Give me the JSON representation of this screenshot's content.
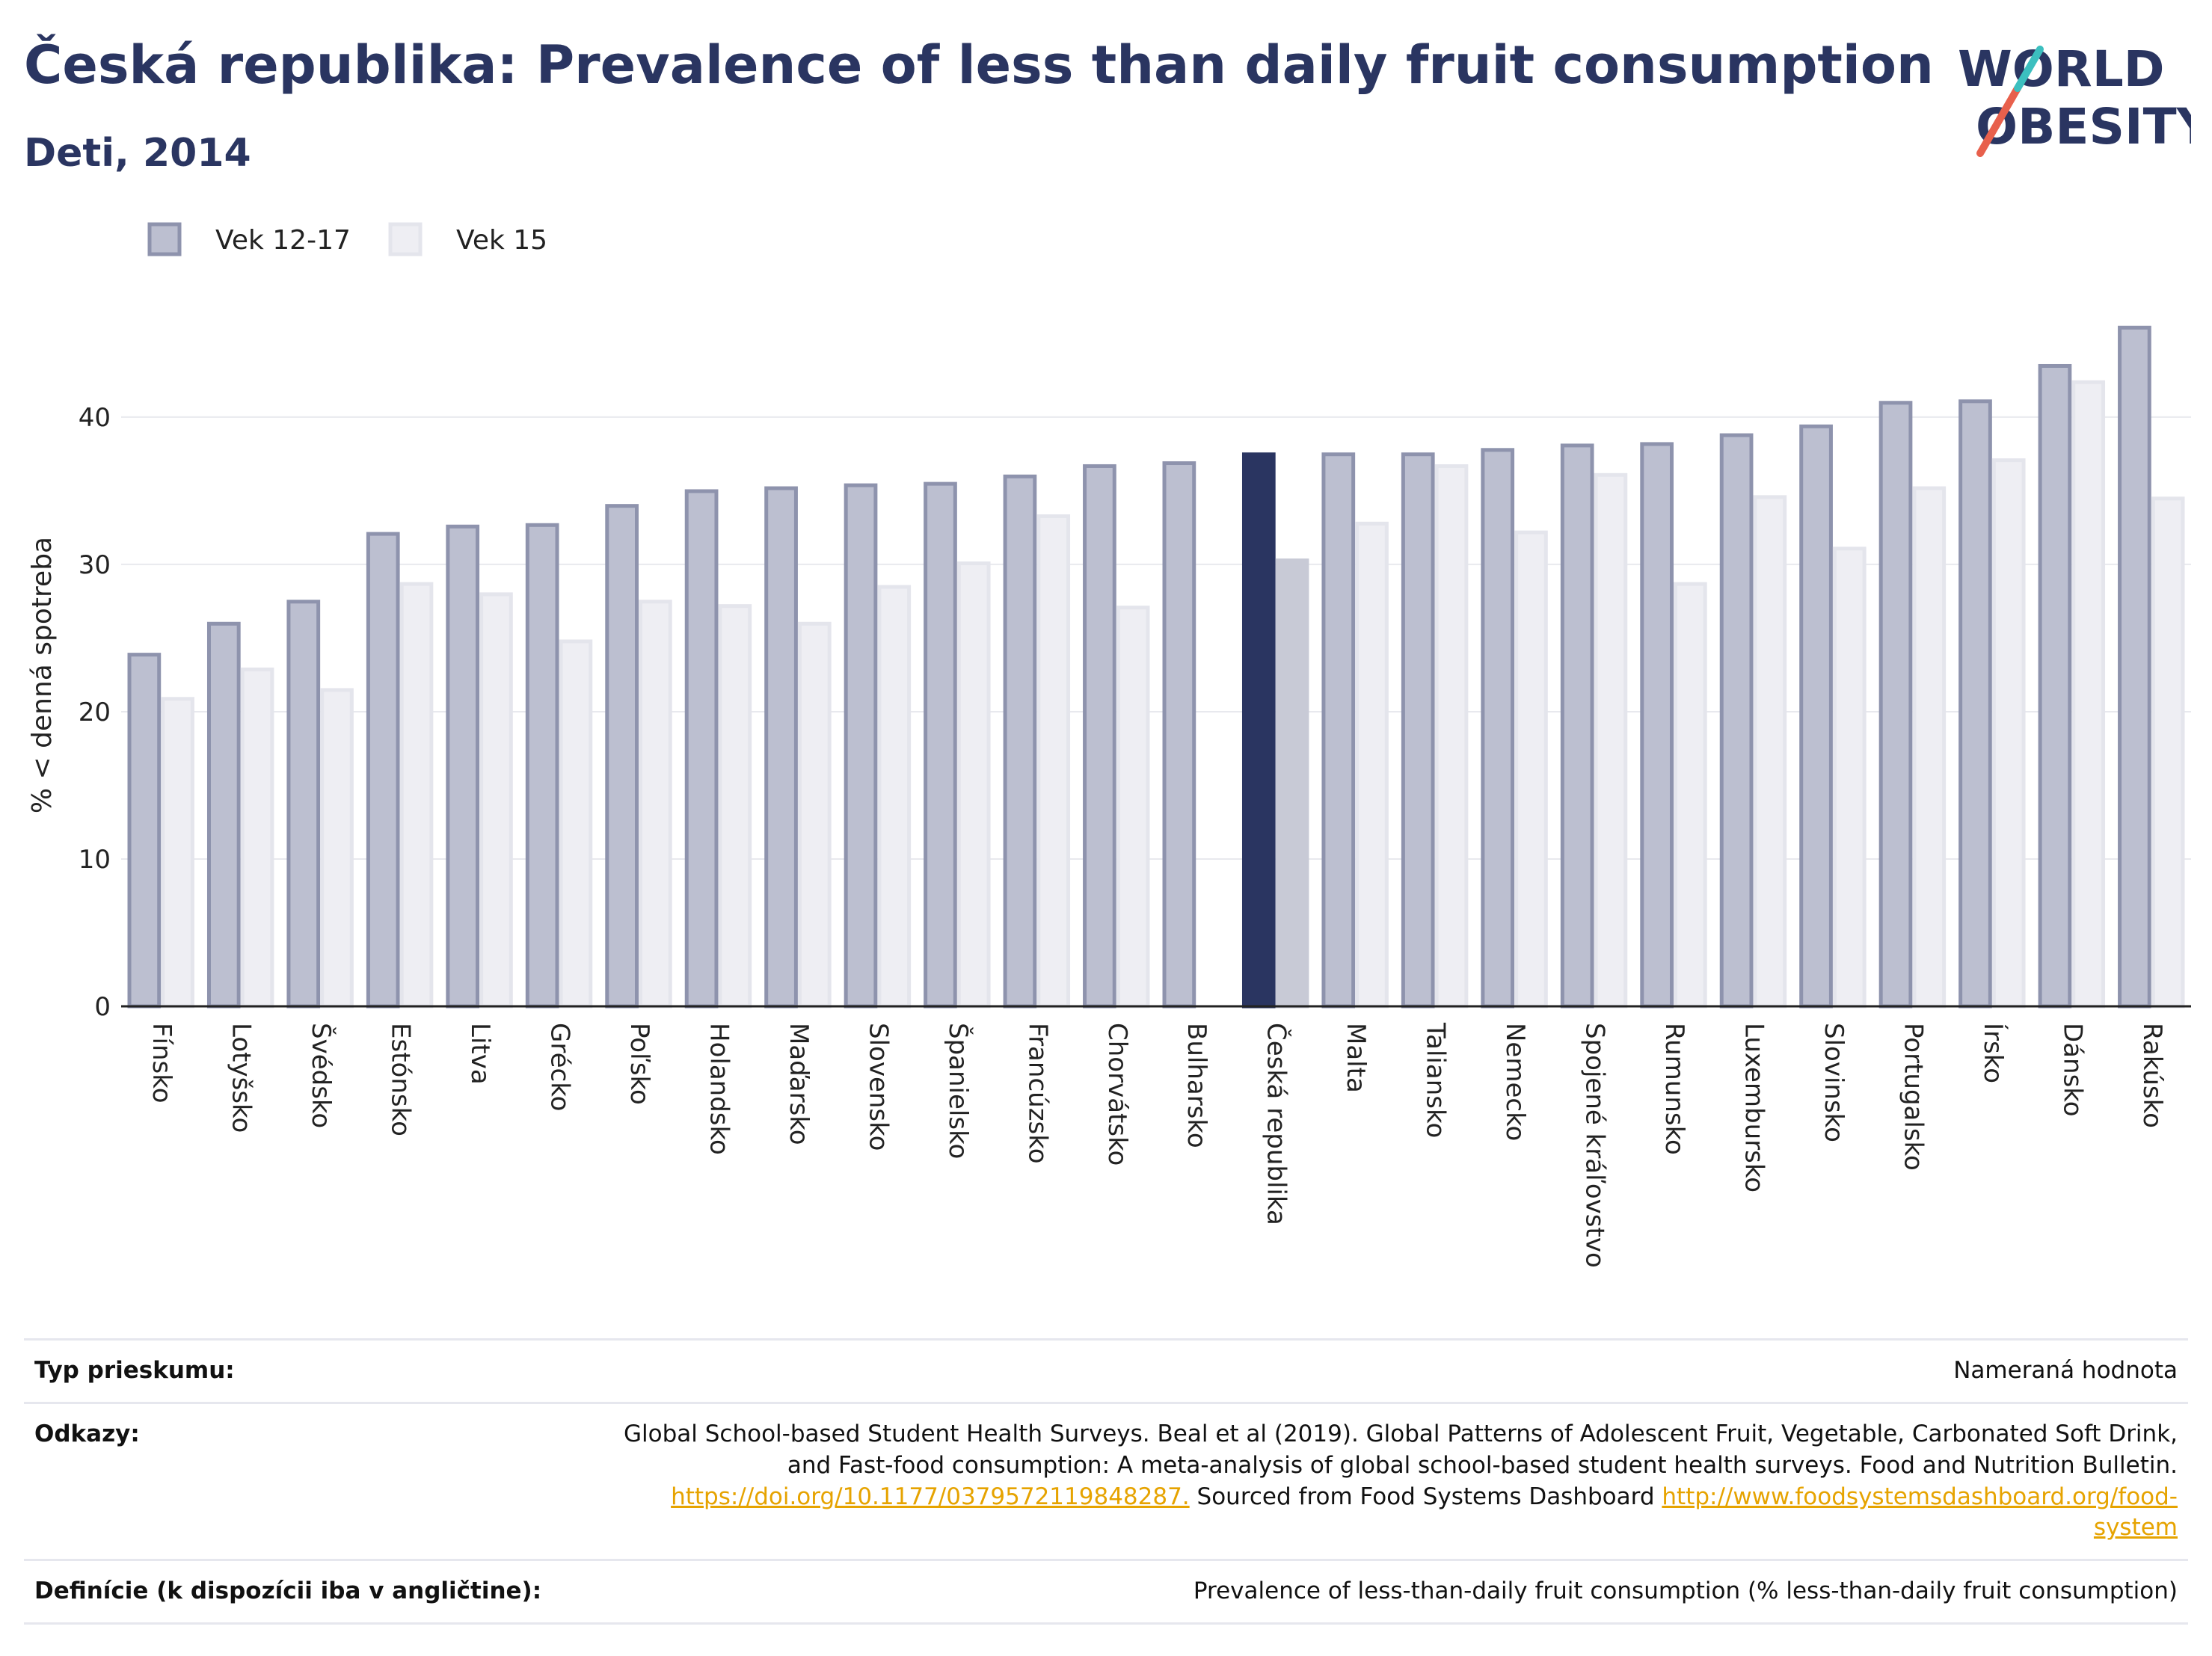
{
  "title": "Česká republika: Prevalence of less than daily fruit consumption",
  "subtitle": "Deti, 2014",
  "logo": {
    "line1": "WORLD",
    "line2": "OBESITY"
  },
  "colors": {
    "series1_fill": "#bcbfd0",
    "series1_stroke": "#8e93ad",
    "series2_fill": "#eeeef3",
    "series2_stroke": "#e4e5ec",
    "highlight1": "#2a3561",
    "highlight2": "#c8cad6",
    "grid": "#e8e9ee",
    "axis": "#222222",
    "logo_text": "#2a3561",
    "logo_slash_red": "#e8604c",
    "logo_slash_teal": "#3cbfbf"
  },
  "chart_data": {
    "type": "bar",
    "ylabel": "% < denná spotreba",
    "ylim": [
      0,
      47
    ],
    "yticks": [
      0,
      10,
      20,
      30,
      40
    ],
    "grid": true,
    "legend_placement": "top-left",
    "highlight_category": "Česká republika",
    "categories": [
      "Fínsko",
      "Lotyšsko",
      "Švédsko",
      "Estónsko",
      "Litva",
      "Grécko",
      "Poľsko",
      "Holandsko",
      "Maďarsko",
      "Slovensko",
      "Španielsko",
      "Francúzsko",
      "Chorvátsko",
      "Bulharsko",
      "Česká republika",
      "Malta",
      "Taliansko",
      "Nemecko",
      "Spojené kráľovstvo",
      "Rumunsko",
      "Luxembursko",
      "Slovinsko",
      "Portugalsko",
      "Írsko",
      "Dánsko",
      "Rakúsko"
    ],
    "series": [
      {
        "name": "Vek 12-17",
        "values": [
          24.0,
          26.1,
          27.6,
          32.2,
          32.7,
          32.8,
          34.1,
          35.1,
          35.3,
          35.5,
          35.6,
          36.1,
          36.8,
          37.0,
          37.6,
          37.6,
          37.6,
          37.9,
          38.2,
          38.3,
          38.9,
          39.5,
          41.1,
          41.2,
          43.6,
          46.2
        ]
      },
      {
        "name": "Vek 15",
        "values": [
          21.0,
          23.0,
          21.6,
          28.8,
          28.1,
          24.9,
          27.6,
          27.3,
          26.1,
          28.6,
          30.2,
          33.4,
          27.2,
          null,
          30.4,
          32.9,
          36.8,
          32.3,
          36.2,
          28.8,
          34.7,
          31.2,
          35.3,
          37.2,
          42.5,
          34.6
        ]
      }
    ]
  },
  "meta": {
    "survey_label": "Typ prieskumu:",
    "survey_value": "Nameraná hodnota",
    "refs_label": "Odkazy:",
    "refs_line1": "Global School-based Student Health Surveys. Beal et al (2019). Global Patterns of Adolescent Fruit, Vegetable, Carbonated Soft Drink,",
    "refs_line2": "and Fast-food consumption: A meta-analysis of global school-based student health surveys. Food and Nutrition Bulletin.",
    "refs_link1": "https://doi.org/10.1177/0379572119848287.",
    "refs_mid": " Sourced from Food Systems Dashboard ",
    "refs_link2a": "http://www.foodsystemsdashboard.org/food-",
    "refs_link2b": "system",
    "def_label": "Definície (k dispozícii iba v angličtine):",
    "def_value": "Prevalence of less-than-daily fruit consumption (% less-than-daily fruit consumption)"
  }
}
